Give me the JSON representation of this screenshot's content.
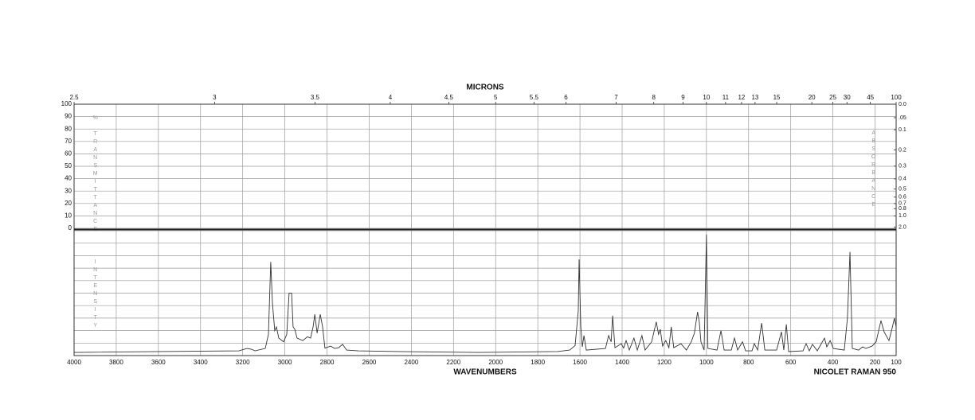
{
  "chart_data": {
    "type": "line",
    "x2label": "MICRONS",
    "xlabel": "WAVENUMBERS",
    "note": "NICOLET RAMAN 950",
    "ylabel": "% TRANSMITTANCE",
    "y2label": "ABSORBANCE",
    "y3label": "INTENSITY",
    "xlim": [
      4000,
      100
    ],
    "xticks": [
      4000,
      3800,
      3600,
      3400,
      3200,
      3000,
      2800,
      2600,
      2400,
      2200,
      2000,
      1800,
      1600,
      1400,
      1200,
      1000,
      800,
      600,
      400,
      200,
      100
    ],
    "x2ticks": [
      2.5,
      3,
      3.5,
      4,
      4.5,
      5,
      5.5,
      6,
      7,
      8,
      9,
      10,
      11,
      12,
      13,
      15,
      20,
      25,
      30,
      45,
      100
    ],
    "ylim": [
      0,
      100
    ],
    "yticks": [
      0,
      10,
      20,
      30,
      40,
      50,
      60,
      70,
      80,
      90,
      100
    ],
    "y2ticks": [
      {
        "value": 0,
        "label": "0.0"
      },
      {
        "value": 0.05,
        "label": ".05"
      },
      0.1,
      0.2,
      0.3,
      0.4,
      0.5,
      0.6,
      0.7,
      0.8,
      {
        "value": 1,
        "label": "1.0"
      },
      {
        "value": 2,
        "label": "2.0"
      }
    ],
    "y3lim": [
      0,
      100
    ],
    "grid": true,
    "x": [
      4000,
      3218,
      3180,
      3157,
      3142,
      3093,
      3078,
      3067,
      3059,
      3048,
      3040,
      3029,
      3006,
      2991,
      2980,
      2968,
      2961,
      2953,
      2942,
      2915,
      2893,
      2878,
      2866,
      2858,
      2847,
      2832,
      2821,
      2810,
      2783,
      2764,
      2745,
      2726,
      2707,
      2651,
      2462,
      2084,
      1706,
      1649,
      1623,
      1608,
      1604,
      1596,
      1589,
      1581,
      1570,
      1479,
      1464,
      1452,
      1445,
      1434,
      1404,
      1393,
      1381,
      1366,
      1344,
      1328,
      1306,
      1291,
      1260,
      1238,
      1227,
      1219,
      1208,
      1193,
      1178,
      1167,
      1155,
      1121,
      1095,
      1072,
      1057,
      1042,
      1034,
      1026,
      1011,
      1000,
      993,
      950,
      931,
      916,
      882,
      867,
      852,
      829,
      814,
      784,
      773,
      757,
      738,
      723,
      667,
      644,
      633,
      621,
      610,
      542,
      527,
      512,
      497,
      474,
      440,
      429,
      413,
      398,
      346,
      331,
      319,
      308,
      278,
      259,
      244,
      214,
      195,
      172,
      157,
      134,
      119,
      108,
      100
    ],
    "series": [
      {
        "color": "#333333",
        "axis": "y3",
        "values": [
          2.5,
          3.8,
          5.7,
          5,
          3.8,
          5.7,
          17,
          75,
          42,
          20,
          23,
          14,
          11,
          17,
          50,
          50,
          23,
          21,
          14,
          12,
          15,
          14,
          23,
          33,
          18,
          33,
          23,
          6,
          7.6,
          5.7,
          6.3,
          9,
          4.4,
          3.8,
          3.2,
          2.5,
          3.2,
          4.4,
          8,
          36,
          77,
          23,
          7,
          16,
          4.4,
          5.7,
          16,
          11,
          32,
          6.3,
          9.5,
          6,
          12,
          4.4,
          14,
          4.4,
          16,
          4.4,
          11,
          27,
          17,
          21,
          7.6,
          12,
          6.3,
          23,
          6.3,
          9.5,
          4.4,
          11,
          18,
          35,
          27,
          11,
          4.4,
          97,
          5.7,
          4.4,
          20,
          4.4,
          4.4,
          14,
          4.4,
          11,
          3.8,
          3.8,
          9.5,
          4.4,
          26,
          4.4,
          4.4,
          19,
          4.4,
          25,
          3.2,
          3.8,
          9.5,
          3.8,
          9,
          3.8,
          14,
          7,
          12,
          5.7,
          4.4,
          30,
          83,
          5.7,
          4.4,
          7,
          5.7,
          7.6,
          11,
          28,
          19,
          12,
          22,
          30,
          23
        ]
      }
    ]
  }
}
